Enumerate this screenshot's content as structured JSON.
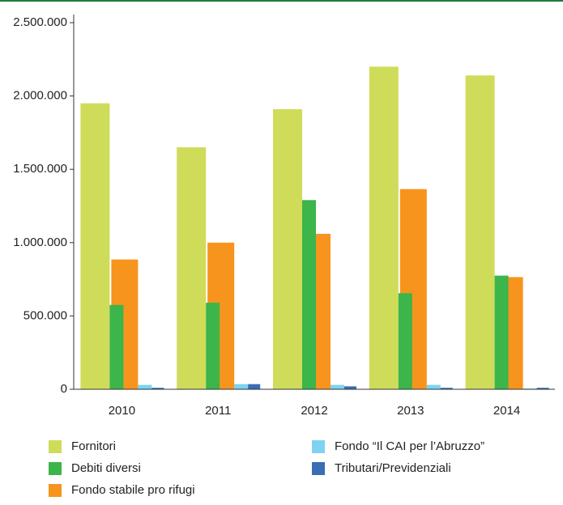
{
  "chart_data": {
    "type": "bar",
    "categories": [
      "2010",
      "2011",
      "2012",
      "2013",
      "2014"
    ],
    "series": [
      {
        "name": "Fornitori",
        "color": "#cfdc5a",
        "values": [
          1950000,
          1650000,
          1910000,
          2200000,
          2140000
        ]
      },
      {
        "name": "Debiti diversi",
        "color": "#3cb54a",
        "values": [
          575000,
          590000,
          1290000,
          655000,
          775000
        ]
      },
      {
        "name": "Fondo stabile pro rifugi",
        "color": "#f7941d",
        "values": [
          885000,
          1000000,
          1060000,
          1365000,
          765000
        ]
      },
      {
        "name": "Fondo “Il CAI per l’Abruzzo”",
        "color": "#7dd3f0",
        "values": [
          30000,
          35000,
          30000,
          30000,
          5000
        ]
      },
      {
        "name": "Tributari/Previdenziali",
        "color": "#3a6eb5",
        "values": [
          10000,
          35000,
          20000,
          10000,
          10000
        ]
      }
    ],
    "ylim": [
      0,
      2500000
    ],
    "yticks": [
      0,
      {
        "value": 500000,
        "label": "500.000"
      },
      {
        "value": 1000000,
        "label": "1.000.000"
      },
      {
        "value": 1500000,
        "label": "1.500.000"
      },
      {
        "value": 2000000,
        "label": "2.000.000"
      },
      {
        "value": 2500000,
        "label": "2.500.000"
      }
    ]
  }
}
